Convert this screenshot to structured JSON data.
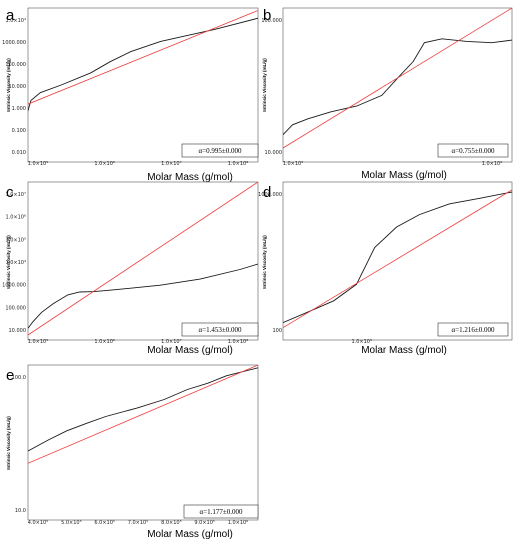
{
  "figure": {
    "panels": [
      {
        "letter": "a",
        "xlabel": "Molar Mass (g/mol)",
        "ylabel": "Intrinsic Viscosity (mL/g)",
        "alpha_label": "α=0.995±0.000",
        "x_ticks": [
          "1.0×10⁵",
          "1.0×10⁶",
          "1.0×10⁷",
          "1.0×10⁸"
        ],
        "y_ticks": [
          "1.0×10⁴",
          "1000.000",
          "100.000",
          "10.000",
          "1.000",
          "0.100",
          "0.010"
        ]
      },
      {
        "letter": "b",
        "xlabel": "Molar Mass (g/mol)",
        "ylabel": "Intrinsic Viscosity (mL/g)",
        "alpha_label": "α=0.755±0.000",
        "x_ticks": [
          "1.0×10⁵",
          "1.0×10⁶"
        ],
        "y_ticks": [
          "100.000",
          "10.000"
        ]
      },
      {
        "letter": "c",
        "xlabel": "Molar Mass (g/mol)",
        "ylabel": "Intrinsic Viscosity (mL/g)",
        "alpha_label": "α=1.453±0.000",
        "x_ticks": [
          "1.0×10⁵",
          "1.0×10⁶",
          "1.0×10⁷",
          "1.0×10⁸"
        ],
        "y_ticks": [
          "1.0×10⁷",
          "1.0×10⁶",
          "1.0×10⁵",
          "1.0×10⁴",
          "1000.000",
          "100.000",
          "10.000"
        ]
      },
      {
        "letter": "d",
        "xlabel": "Molar Mass (g/mol)",
        "ylabel": "Intrinsic Viscosity (mL/g)",
        "alpha_label": "α=1.216±0.000",
        "x_ticks": [
          "1.0×10⁵"
        ],
        "y_ticks": [
          "1000.000",
          "100"
        ]
      },
      {
        "letter": "e",
        "xlabel": "Molar Mass (g/mol)",
        "ylabel": "Intrinsic Viscosity (mL/g)",
        "alpha_label": "α=1.177±0.000",
        "x_ticks": [
          "4.0×10⁵",
          "5.0×10⁵",
          "6.0×10⁵",
          "7.0×10⁵",
          "8.0×10⁵",
          "9.0×10⁵",
          "1.0×10⁶"
        ],
        "y_ticks": [
          "100.0",
          "10.0"
        ]
      }
    ],
    "colors": {
      "fit_line": "#ee3b3b",
      "data_line": "#1a1a1a",
      "axis": "#555555"
    }
  },
  "chart_data": [
    {
      "type": "line",
      "letter": "a",
      "scale": "log-log",
      "xlim": [
        100000,
        200000000
      ],
      "ylim": [
        0.01,
        10000
      ],
      "series": [
        {
          "x": [
            100000,
            110000,
            150000,
            300000,
            800000,
            1500000,
            3000000,
            8000000,
            50000000,
            200000000
          ],
          "y": [
            1.0,
            2.5,
            5,
            10,
            30,
            80,
            200,
            500,
            1500,
            4000
          ]
        },
        {
          "x": [
            100000,
            200000000
          ],
          "y": [
            1.8,
            8000
          ]
        }
      ]
    },
    {
      "type": "line",
      "letter": "b",
      "scale": "log-log",
      "xlim": [
        60000,
        2500000
      ],
      "ylim": [
        7,
        350
      ],
      "series": [
        {
          "x": [
            60000,
            70000,
            90000,
            130000,
            200000,
            300000,
            400000,
            500000,
            600000,
            800000,
            1200000,
            1800000,
            2500000
          ],
          "y": [
            14,
            18,
            21,
            25,
            29,
            38,
            62,
            90,
            145,
            160,
            150,
            145,
            155
          ]
        },
        {
          "x": [
            60000,
            2500000
          ],
          "y": [
            10,
            350
          ]
        }
      ]
    },
    {
      "type": "line",
      "letter": "c",
      "scale": "log-log",
      "xlim": [
        50000,
        150000000
      ],
      "ylim": [
        3,
        30000000
      ],
      "series": [
        {
          "x": [
            50000,
            60000,
            80000,
            120000,
            200000,
            300000,
            500000,
            1000000,
            5000000,
            20000000,
            80000000,
            150000000
          ],
          "y": [
            10,
            20,
            50,
            120,
            300,
            400,
            420,
            500,
            800,
            1500,
            4000,
            7000
          ]
        },
        {
          "x": [
            50000,
            150000000
          ],
          "y": [
            5,
            30000000
          ]
        }
      ]
    },
    {
      "type": "line",
      "letter": "d",
      "scale": "log-log",
      "xlim": [
        40000,
        500000
      ],
      "ylim": [
        30,
        1200
      ],
      "series": [
        {
          "x": [
            40000,
            55000,
            70000,
            90000,
            110000,
            140000,
            180000,
            250000,
            350000,
            500000
          ],
          "y": [
            45,
            60,
            75,
            110,
            260,
            420,
            560,
            720,
            820,
            950
          ]
        },
        {
          "x": [
            40000,
            500000
          ],
          "y": [
            40,
            1000
          ]
        }
      ]
    },
    {
      "type": "line",
      "letter": "e",
      "scale": "log-log",
      "xlim": [
        320000,
        1200000
      ],
      "ylim": [
        8,
        180
      ],
      "series": [
        {
          "x": [
            320000,
            360000,
            400000,
            450000,
            500000,
            600000,
            700000,
            800000,
            900000,
            1000000,
            1200000
          ],
          "y": [
            32,
            40,
            48,
            56,
            64,
            76,
            90,
            110,
            125,
            145,
            170
          ]
        },
        {
          "x": [
            320000,
            1200000
          ],
          "y": [
            25,
            180
          ]
        }
      ]
    }
  ]
}
